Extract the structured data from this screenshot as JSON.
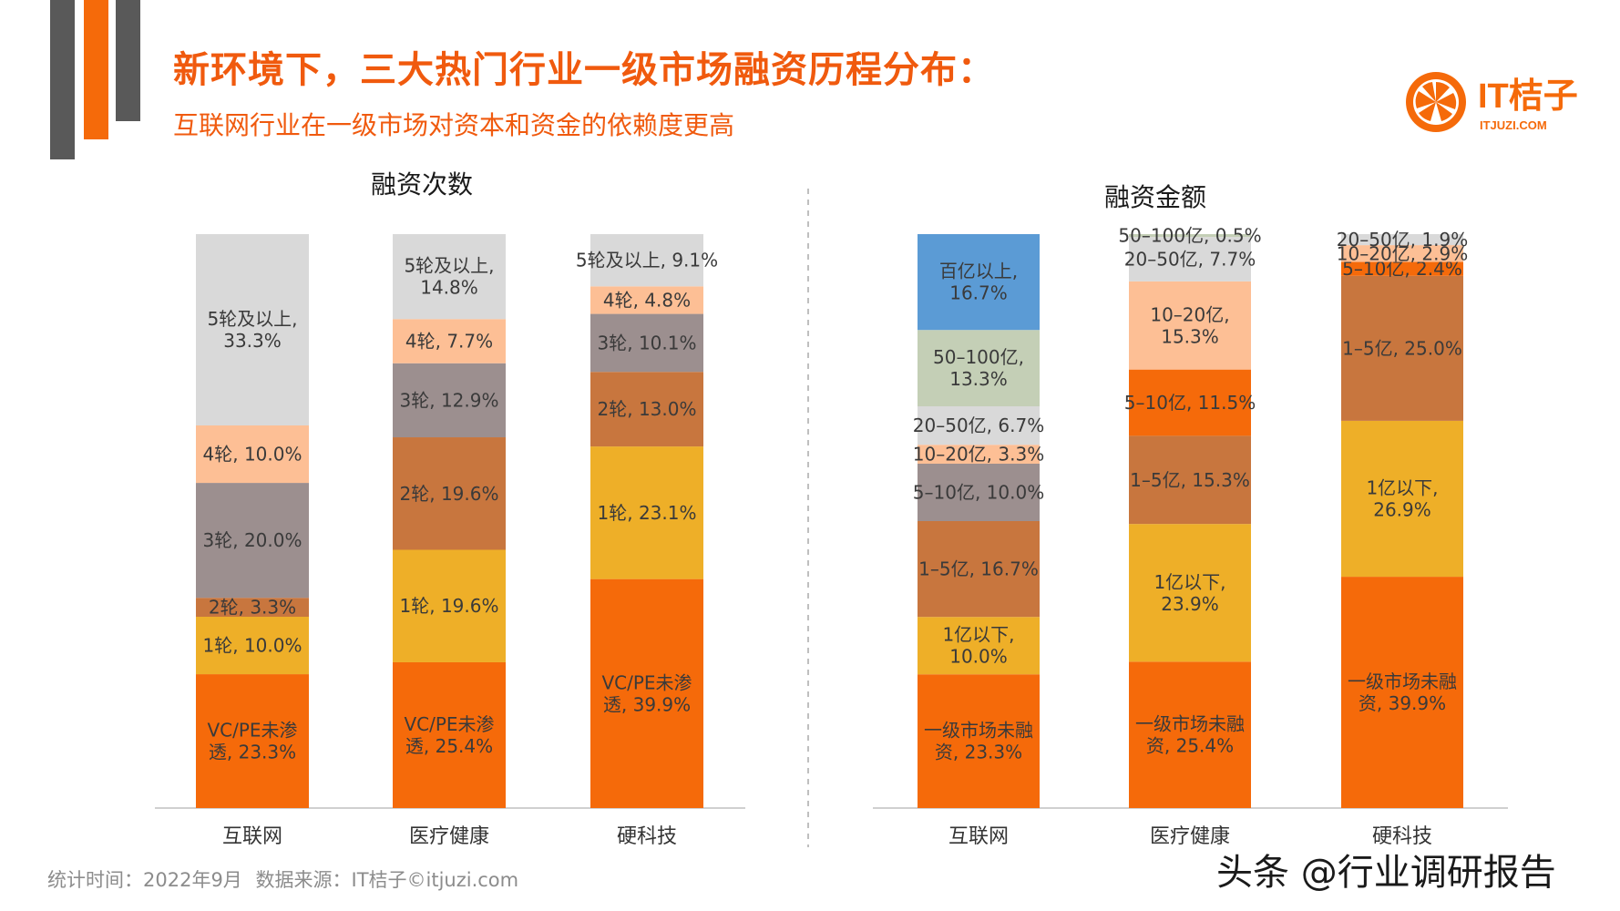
{
  "title": "新环境下，三大热门行业一级市场融资历程分布：",
  "subtitle": "互联网行业在一级市场对资本和资金的依赖度更高",
  "logo": {
    "text": "IT桔子",
    "domain": "ITJUZI.COM"
  },
  "footer": {
    "date": "统计时间：2022年9月",
    "source": "数据来源：IT桔子©itjuzi.com"
  },
  "watermark": "头条 @行业调研报告",
  "colors": {
    "accent": "#f05a0e",
    "dark_bar": "#595959",
    "orange_dark": "#f56a0a",
    "gold": "#eeaf28",
    "brown": "#c8763e",
    "taupe": "#9c8f8f",
    "peach": "#fdbf95",
    "light_gray": "#d9d9d9",
    "sage": "#c4cfb6",
    "blue": "#5b9bd5"
  },
  "chart_data": [
    {
      "type": "bar",
      "stacked": true,
      "percent": true,
      "title": "融资次数",
      "categories": [
        "互联网",
        "医疗健康",
        "硬科技"
      ],
      "series": [
        {
          "name": "VC/PE未渗透",
          "color": "#f56a0a",
          "values": [
            23.3,
            25.4,
            39.9
          ],
          "labels": [
            "VC/PE未渗\n透, 23.3%",
            "VC/PE未渗\n透, 25.4%",
            "VC/PE未渗\n透, 39.9%"
          ]
        },
        {
          "name": "1轮",
          "color": "#eeaf28",
          "values": [
            10.0,
            19.6,
            23.1
          ],
          "labels": [
            "1轮, 10.0%",
            "1轮, 19.6%",
            "1轮, 23.1%"
          ]
        },
        {
          "name": "2轮",
          "color": "#c8763e",
          "values": [
            3.3,
            19.6,
            13.0
          ],
          "labels": [
            "2轮, 3.3%",
            "2轮, 19.6%",
            "2轮, 13.0%"
          ]
        },
        {
          "name": "3轮",
          "color": "#9c8f8f",
          "values": [
            20.0,
            12.9,
            10.1
          ],
          "labels": [
            "3轮, 20.0%",
            "3轮, 12.9%",
            "3轮, 10.1%"
          ]
        },
        {
          "name": "4轮",
          "color": "#fdbf95",
          "values": [
            10.0,
            7.7,
            4.8
          ],
          "labels": [
            "4轮, 10.0%",
            "4轮, 7.7%",
            "4轮, 4.8%"
          ]
        },
        {
          "name": "5轮及以上",
          "color": "#d9d9d9",
          "values": [
            33.3,
            14.8,
            9.1
          ],
          "labels": [
            "5轮及以上,\n33.3%",
            "5轮及以上,\n14.8%",
            "5轮及以上, 9.1%"
          ]
        }
      ]
    },
    {
      "type": "bar",
      "stacked": true,
      "percent": true,
      "title": "融资金额",
      "categories": [
        "互联网",
        "医疗健康",
        "硬科技"
      ],
      "series": [
        {
          "name": "一级市场未融资",
          "color": "#f56a0a",
          "values": [
            23.3,
            25.4,
            39.9
          ],
          "labels": [
            "一级市场未融\n资, 23.3%",
            "一级市场未融\n资, 25.4%",
            "一级市场未融\n资, 39.9%"
          ]
        },
        {
          "name": "1亿以下",
          "color": "#eeaf28",
          "values": [
            10.0,
            23.9,
            26.9
          ],
          "labels": [
            "1亿以下,\n10.0%",
            "1亿以下,\n23.9%",
            "1亿以下,\n26.9%"
          ]
        },
        {
          "name": "1-5亿",
          "color": "#c8763e",
          "values": [
            16.7,
            15.3,
            25.0
          ],
          "labels": [
            "1–5亿, 16.7%",
            "1–5亿, 15.3%",
            "1–5亿, 25.0%"
          ]
        },
        {
          "name": "5-10亿",
          "color": "#f56a0a",
          "values": [
            0,
            11.5,
            2.4
          ],
          "labels": [
            "",
            "5–10亿, 11.5%",
            "5–10亿, 2.4%"
          ]
        },
        {
          "name": "5-10亿(互联网)",
          "color": "#9c8f8f",
          "values": [
            10.0,
            0,
            0
          ],
          "labels": [
            "5–10亿, 10.0%",
            "",
            ""
          ]
        },
        {
          "name": "10-20亿",
          "color": "#fdbf95",
          "values": [
            3.3,
            15.3,
            2.9
          ],
          "labels": [
            "10–20亿, 3.3%",
            "10–20亿,\n15.3%",
            "10–20亿, 2.9%"
          ]
        },
        {
          "name": "20-50亿",
          "color": "#d9d9d9",
          "values": [
            6.7,
            7.7,
            1.9
          ],
          "labels": [
            "20–50亿, 6.7%",
            "20–50亿, 7.7%",
            "20–50亿, 1.9%"
          ]
        },
        {
          "name": "50-100亿",
          "color": "#c4cfb6",
          "values": [
            13.3,
            0.5,
            0
          ],
          "labels": [
            "50–100亿,\n13.3%",
            "50–100亿, 0.5%",
            ""
          ]
        },
        {
          "name": "百亿以上",
          "color": "#5b9bd5",
          "values": [
            16.7,
            0,
            0
          ],
          "labels": [
            "百亿以上,\n16.7%",
            "",
            ""
          ]
        }
      ]
    }
  ]
}
